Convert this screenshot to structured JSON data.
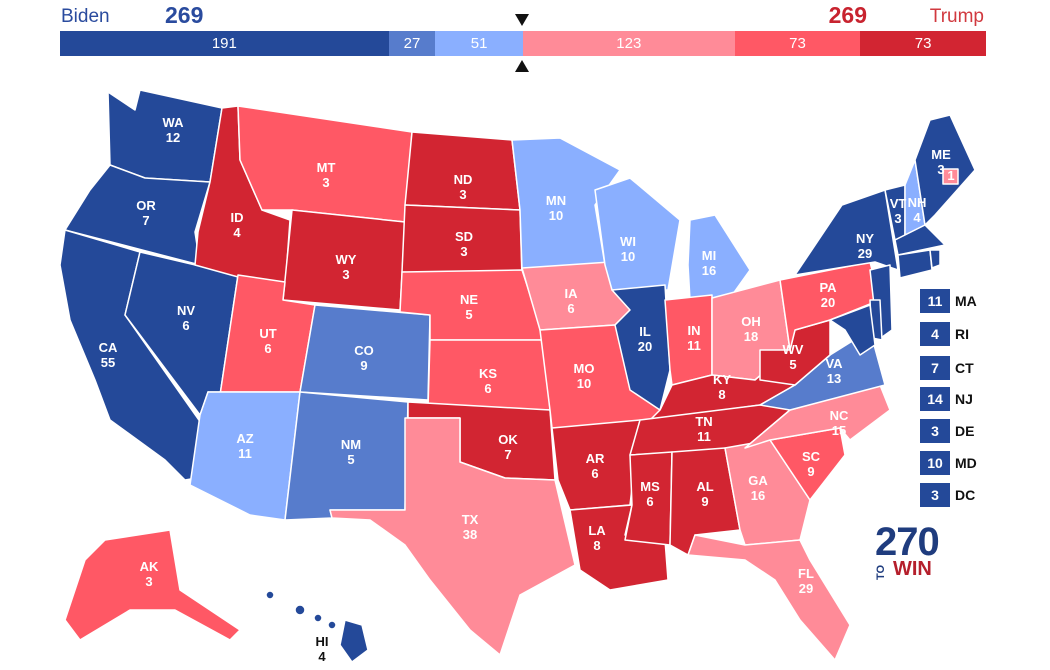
{
  "colors": {
    "safe_d": "#244999",
    "likely_d": "#577ccc",
    "lean_d": "#8aafff",
    "lean_r": "#ff8b98",
    "likely_r": "#ff5865",
    "safe_r": "#d22532",
    "border": "#ffffff"
  },
  "header": {
    "dem": {
      "name": "Biden",
      "votes": "269"
    },
    "rep": {
      "name": "Trump",
      "votes": "269"
    }
  },
  "tally_bar": [
    {
      "label": "191",
      "value": 191,
      "rating": "safe_d"
    },
    {
      "label": "27",
      "value": 27,
      "rating": "likely_d"
    },
    {
      "label": "51",
      "value": 51,
      "rating": "lean_d"
    },
    {
      "label": "123",
      "value": 123,
      "rating": "lean_r"
    },
    {
      "label": "73",
      "value": 73,
      "rating": "likely_r"
    },
    {
      "label": "73",
      "value": 73,
      "rating": "safe_r"
    }
  ],
  "states": [
    {
      "abbr": "WA",
      "ev": "12",
      "rating": "safe_d"
    },
    {
      "abbr": "OR",
      "ev": "7",
      "rating": "safe_d"
    },
    {
      "abbr": "CA",
      "ev": "55",
      "rating": "safe_d"
    },
    {
      "abbr": "NV",
      "ev": "6",
      "rating": "safe_d"
    },
    {
      "abbr": "ID",
      "ev": "4",
      "rating": "safe_r"
    },
    {
      "abbr": "MT",
      "ev": "3",
      "rating": "likely_r"
    },
    {
      "abbr": "WY",
      "ev": "3",
      "rating": "safe_r"
    },
    {
      "abbr": "UT",
      "ev": "6",
      "rating": "likely_r"
    },
    {
      "abbr": "AZ",
      "ev": "11",
      "rating": "lean_d"
    },
    {
      "abbr": "CO",
      "ev": "9",
      "rating": "likely_d"
    },
    {
      "abbr": "NM",
      "ev": "5",
      "rating": "likely_d"
    },
    {
      "abbr": "ND",
      "ev": "3",
      "rating": "safe_r"
    },
    {
      "abbr": "SD",
      "ev": "3",
      "rating": "safe_r"
    },
    {
      "abbr": "NE",
      "ev": "5",
      "rating": "likely_r"
    },
    {
      "abbr": "KS",
      "ev": "6",
      "rating": "likely_r"
    },
    {
      "abbr": "OK",
      "ev": "7",
      "rating": "safe_r"
    },
    {
      "abbr": "TX",
      "ev": "38",
      "rating": "lean_r"
    },
    {
      "abbr": "MN",
      "ev": "10",
      "rating": "lean_d"
    },
    {
      "abbr": "IA",
      "ev": "6",
      "rating": "lean_r"
    },
    {
      "abbr": "MO",
      "ev": "10",
      "rating": "likely_r"
    },
    {
      "abbr": "AR",
      "ev": "6",
      "rating": "safe_r"
    },
    {
      "abbr": "LA",
      "ev": "8",
      "rating": "safe_r"
    },
    {
      "abbr": "WI",
      "ev": "10",
      "rating": "lean_d"
    },
    {
      "abbr": "IL",
      "ev": "20",
      "rating": "safe_d"
    },
    {
      "abbr": "MI",
      "ev": "16",
      "rating": "lean_d"
    },
    {
      "abbr": "IN",
      "ev": "11",
      "rating": "likely_r"
    },
    {
      "abbr": "OH",
      "ev": "18",
      "rating": "lean_r"
    },
    {
      "abbr": "KY",
      "ev": "8",
      "rating": "safe_r"
    },
    {
      "abbr": "TN",
      "ev": "11",
      "rating": "safe_r"
    },
    {
      "abbr": "MS",
      "ev": "6",
      "rating": "safe_r"
    },
    {
      "abbr": "AL",
      "ev": "9",
      "rating": "safe_r"
    },
    {
      "abbr": "GA",
      "ev": "16",
      "rating": "lean_r"
    },
    {
      "abbr": "FL",
      "ev": "29",
      "rating": "lean_r"
    },
    {
      "abbr": "SC",
      "ev": "9",
      "rating": "likely_r"
    },
    {
      "abbr": "NC",
      "ev": "15",
      "rating": "lean_r"
    },
    {
      "abbr": "VA",
      "ev": "13",
      "rating": "likely_d"
    },
    {
      "abbr": "WV",
      "ev": "5",
      "rating": "safe_r"
    },
    {
      "abbr": "PA",
      "ev": "20",
      "rating": "likely_r"
    },
    {
      "abbr": "NY",
      "ev": "29",
      "rating": "safe_d"
    },
    {
      "abbr": "VT",
      "ev": "3",
      "rating": "safe_d"
    },
    {
      "abbr": "NH",
      "ev": "4",
      "rating": "lean_d"
    },
    {
      "abbr": "ME",
      "ev": "3",
      "rating": "safe_d"
    },
    {
      "abbr": "ME-CD2",
      "ev": "1",
      "rating": "lean_r"
    },
    {
      "abbr": "AK",
      "ev": "3",
      "rating": "likely_r"
    },
    {
      "abbr": "HI",
      "ev": "4",
      "rating": "safe_d"
    }
  ],
  "small_states": [
    {
      "abbr": "MA",
      "ev": "11",
      "rating": "safe_d"
    },
    {
      "abbr": "RI",
      "ev": "4",
      "rating": "safe_d"
    },
    {
      "abbr": "CT",
      "ev": "7",
      "rating": "safe_d"
    },
    {
      "abbr": "NJ",
      "ev": "14",
      "rating": "safe_d"
    },
    {
      "abbr": "DE",
      "ev": "3",
      "rating": "safe_d"
    },
    {
      "abbr": "MD",
      "ev": "10",
      "rating": "safe_d"
    },
    {
      "abbr": "DC",
      "ev": "3",
      "rating": "safe_d"
    }
  ],
  "logo": {
    "number": "270",
    "to": "TO",
    "win": "WIN"
  }
}
